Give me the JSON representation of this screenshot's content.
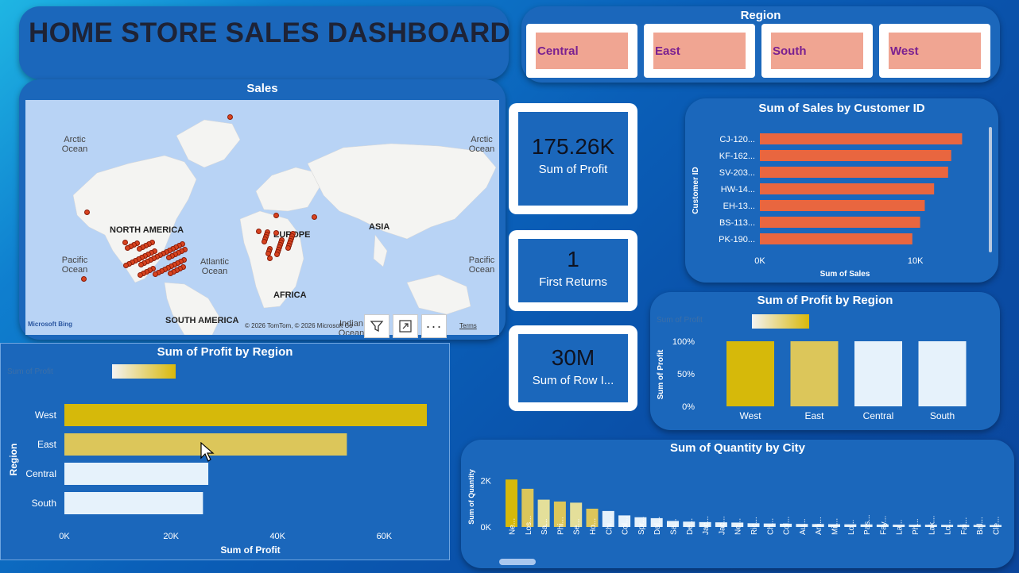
{
  "header": {
    "title": "HOME STORE SALES DASHBOARD"
  },
  "region_slicer": {
    "label": "Region",
    "options": [
      "Central",
      "East",
      "South",
      "West"
    ]
  },
  "sales_map": {
    "title": "Sales",
    "labels": {
      "arctic_left": "Arctic\nOcean",
      "arctic_right": "Arctic\nOcean",
      "pacific_left": "Pacific\nOcean",
      "pacific_right": "Pacific\nOcean",
      "atlantic": "Atlantic\nOcean",
      "indian": "Indian\nOcean",
      "north_america": "NORTH AMERICA",
      "south_america": "SOUTH AMERICA",
      "europe": "EUROPE",
      "asia": "ASIA",
      "africa": "AFRICA"
    },
    "attribution": "© 2026 TomTom, © 2026 Microsoft Co",
    "terms": "Terms",
    "brand": "Microsoft Bing"
  },
  "kpis": [
    {
      "value": "175.26K",
      "label": "Sum of Profit"
    },
    {
      "value": "1",
      "label": "First Returns"
    },
    {
      "value": "30M",
      "label": "Sum of Row I..."
    }
  ],
  "colors": {
    "card": "#1b67bb",
    "bar_orange": "#e9663f",
    "gold_dark": "#d6b90a",
    "gold_mid": "#dcc65a",
    "gold_light": "#e6f2fb",
    "slicer_fill": "#f0a592",
    "slicer_text": "#7a2090"
  },
  "chart_data": [
    {
      "id": "sales_by_customer",
      "type": "bar",
      "orientation": "horizontal",
      "title": "Sum of Sales by Customer ID",
      "xlabel": "Sum of Sales",
      "ylabel": "Customer ID",
      "categories": [
        "CJ-120...",
        "KF-162...",
        "SV-203...",
        "HW-14...",
        "EH-13...",
        "BS-113...",
        "PK-190..."
      ],
      "values": [
        13000,
        12300,
        12100,
        11200,
        10600,
        10300,
        9800
      ],
      "xticks": [
        "0K",
        "10K"
      ],
      "xlim": [
        0,
        14000
      ]
    },
    {
      "id": "profit_by_region_col",
      "type": "bar",
      "orientation": "vertical",
      "title": "Sum of Profit by Region",
      "ylabel": "Sum of Profit",
      "categories": [
        "West",
        "East",
        "Central",
        "South"
      ],
      "values": [
        100,
        100,
        100,
        100
      ],
      "yticks": [
        "0%",
        "50%",
        "100%"
      ],
      "ylim": [
        0,
        100
      ],
      "legend": "Sum of Profit"
    },
    {
      "id": "profit_by_region_bar",
      "type": "bar",
      "orientation": "horizontal",
      "title": "Sum of Profit by Region",
      "xlabel": "Sum of Profit",
      "ylabel": "Region",
      "categories": [
        "West",
        "East",
        "Central",
        "South"
      ],
      "values": [
        68000,
        53000,
        27000,
        26000
      ],
      "xticks": [
        "0K",
        "20K",
        "40K",
        "60K"
      ],
      "xlim": [
        0,
        68000
      ],
      "legend": "Sum of Profit"
    },
    {
      "id": "quantity_by_city",
      "type": "bar",
      "orientation": "vertical",
      "title": "Sum of Quantity by City",
      "ylabel": "Sum of Quantity",
      "categories": [
        "Ne...",
        "Los...",
        "Sa...",
        "Phi...",
        "Se...",
        "Ho...",
        "Chi...",
        "Col...",
        "Spr...",
        "Dal...",
        "Sa...",
        "De...",
        "Jac...",
        "Jac...",
        "Ne...",
        "Ric...",
        "Ch...",
        "Col...",
        "Au...",
        "Arli...",
        "Mil...",
        "Lo...",
        "Pas...",
        "Fay...",
        "La...",
        "Ph...",
        "Lak...",
        "Lo...",
        "Fai...",
        "Bal...",
        "Cle..."
      ],
      "values": [
        2050,
        1650,
        1180,
        1100,
        1050,
        790,
        690,
        500,
        420,
        380,
        260,
        230,
        210,
        200,
        190,
        160,
        150,
        140,
        130,
        125,
        120,
        115,
        110,
        105,
        100,
        98,
        95,
        92,
        90,
        88,
        85
      ],
      "yticks": [
        "0K",
        "2K"
      ],
      "ylim": [
        0,
        2400
      ]
    }
  ]
}
